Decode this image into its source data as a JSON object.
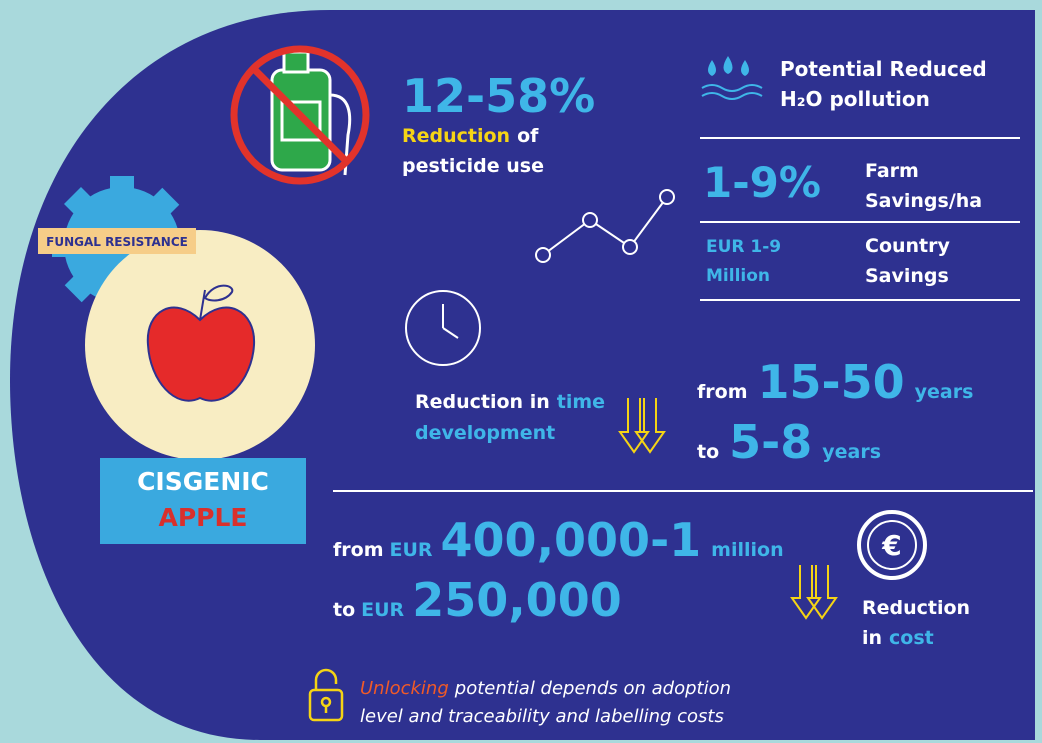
{
  "pesticide": {
    "figure": "12-58%",
    "highlight": "Reduction",
    "rest": "of",
    "line2": "pesticide use"
  },
  "water": {
    "line1": "Potential Reduced",
    "line2": "H₂O pollution"
  },
  "farm": {
    "figure": "1-9%",
    "label1": "Farm",
    "label2": "Savings/ha"
  },
  "country": {
    "figure1": "EUR 1-9",
    "figure2": "Million",
    "label1": "Country",
    "label2": "Savings"
  },
  "badge": "FUNGAL RESISTANCE",
  "product": {
    "line1": "CISGENIC",
    "line2": "APPLE"
  },
  "time": {
    "text1": "Reduction in",
    "highlight": "time",
    "text2": "development",
    "from": "from",
    "from_value": "15-50",
    "from_unit": "years",
    "to": "to",
    "to_value": "5-8",
    "to_unit": "years"
  },
  "cost": {
    "from": "from",
    "from_currency": "EUR",
    "from_value": "400,000-1",
    "from_unit": "million",
    "to": "to",
    "to_currency": "EUR",
    "to_value": "250,000",
    "label1": "Reduction",
    "label2_a": "in",
    "label2_b": "cost"
  },
  "note": {
    "highlight": "Unlocking",
    "line1": "potential depends on adoption",
    "line2": "level and traceability and labelling costs"
  }
}
